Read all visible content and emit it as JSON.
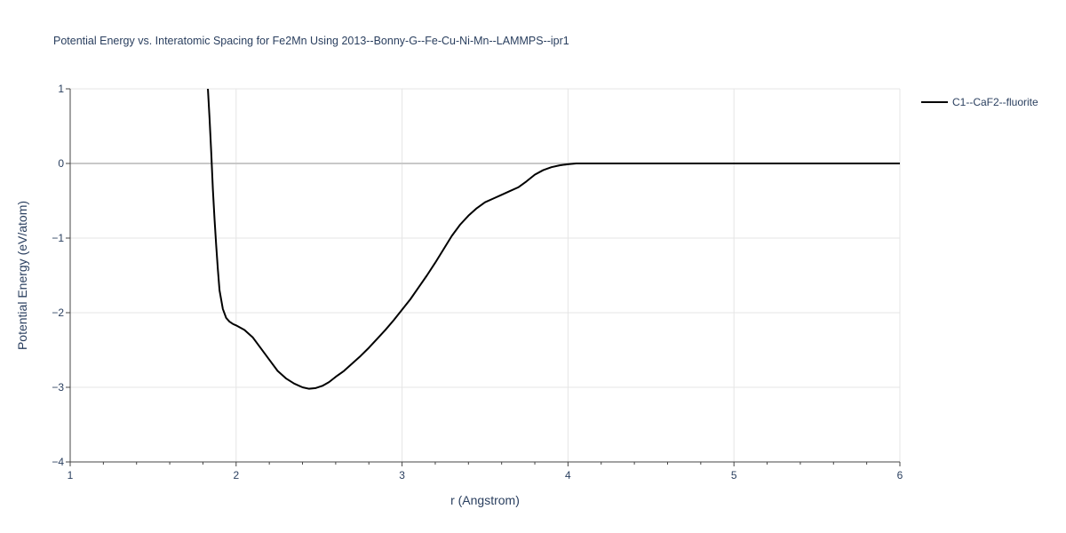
{
  "chart_data": {
    "type": "line",
    "title": "Potential Energy vs. Interatomic Spacing for Fe2Mn Using 2013--Bonny-G--Fe-Cu-Ni-Mn--LAMMPS--ipr1",
    "xlabel": "r (Angstrom)",
    "ylabel": "Potential Energy (eV/atom)",
    "xlim": [
      1,
      6
    ],
    "ylim": [
      -4,
      1
    ],
    "xticks": [
      1,
      2,
      3,
      4,
      5,
      6
    ],
    "yticks": [
      1,
      0,
      -1,
      -2,
      -3,
      -4
    ],
    "ytick_labels": [
      "1",
      "0",
      "−1",
      "−2",
      "−3",
      "−4"
    ],
    "grid": true,
    "legend_position": "top-right",
    "series": [
      {
        "name": "C1--CaF2--fluorite",
        "color": "#000000",
        "x": [
          1.83,
          1.84,
          1.85,
          1.86,
          1.87,
          1.88,
          1.89,
          1.9,
          1.92,
          1.94,
          1.96,
          1.98,
          2.0,
          2.05,
          2.1,
          2.15,
          2.2,
          2.25,
          2.3,
          2.35,
          2.4,
          2.44,
          2.48,
          2.52,
          2.56,
          2.6,
          2.65,
          2.7,
          2.75,
          2.8,
          2.85,
          2.9,
          2.95,
          3.0,
          3.05,
          3.1,
          3.15,
          3.2,
          3.25,
          3.3,
          3.35,
          3.4,
          3.45,
          3.5,
          3.55,
          3.6,
          3.65,
          3.7,
          3.75,
          3.8,
          3.85,
          3.9,
          3.95,
          4.0,
          4.05,
          4.1,
          4.2,
          4.35,
          4.5,
          5.0,
          5.5,
          6.0
        ],
        "y": [
          1.0,
          0.6,
          0.15,
          -0.35,
          -0.75,
          -1.1,
          -1.42,
          -1.7,
          -1.95,
          -2.07,
          -2.12,
          -2.15,
          -2.17,
          -2.23,
          -2.33,
          -2.48,
          -2.63,
          -2.78,
          -2.88,
          -2.95,
          -3.0,
          -3.02,
          -3.01,
          -2.98,
          -2.93,
          -2.86,
          -2.78,
          -2.68,
          -2.58,
          -2.47,
          -2.35,
          -2.23,
          -2.1,
          -1.96,
          -1.82,
          -1.66,
          -1.5,
          -1.33,
          -1.15,
          -0.97,
          -0.82,
          -0.7,
          -0.6,
          -0.52,
          -0.47,
          -0.42,
          -0.37,
          -0.32,
          -0.24,
          -0.15,
          -0.09,
          -0.05,
          -0.025,
          -0.01,
          0.0,
          0.0,
          0.0,
          0.0,
          0.0,
          0.0,
          0.0,
          0.0
        ]
      }
    ]
  }
}
